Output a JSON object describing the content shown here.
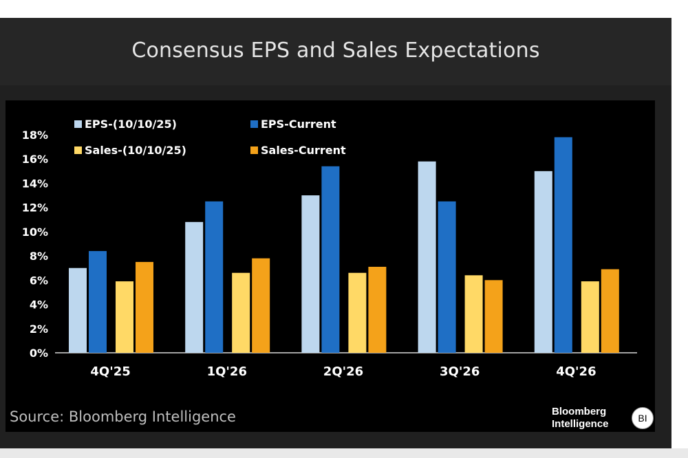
{
  "header": {
    "title": "Consensus EPS and Sales Expectations"
  },
  "source": "Source: Bloomberg Intelligence",
  "brand": {
    "line1": "Bloomberg",
    "line2": "Intelligence",
    "badge": "BI"
  },
  "colors": {
    "eps_prior": "#bdd7ee",
    "eps_current": "#1f6fc5",
    "sales_prior": "#ffd966",
    "sales_current": "#f4a21a",
    "panel_bg": "#000000",
    "page_bg": "#202020"
  },
  "chart_data": {
    "type": "bar",
    "title": "Consensus EPS and Sales Expectations",
    "xlabel": "",
    "ylabel": "",
    "categories": [
      "4Q'25",
      "1Q'26",
      "2Q'26",
      "3Q'26",
      "4Q'26"
    ],
    "y_ticks": [
      "0%",
      "2%",
      "4%",
      "6%",
      "8%",
      "10%",
      "12%",
      "14%",
      "16%",
      "18%"
    ],
    "ylim": [
      0,
      18
    ],
    "grid": false,
    "legend_position": "top-left",
    "series": [
      {
        "name": "EPS-(10/10/25)",
        "color": "#bdd7ee",
        "values": [
          7.0,
          10.8,
          13.0,
          15.8,
          15.0
        ]
      },
      {
        "name": "EPS-Current",
        "color": "#1f6fc5",
        "values": [
          8.4,
          12.5,
          15.4,
          12.5,
          17.8
        ]
      },
      {
        "name": "Sales-(10/10/25)",
        "color": "#ffd966",
        "values": [
          5.9,
          6.6,
          6.6,
          6.4,
          5.9
        ]
      },
      {
        "name": "Sales-Current",
        "color": "#f4a21a",
        "values": [
          7.5,
          7.8,
          7.1,
          6.0,
          6.9
        ]
      }
    ]
  }
}
